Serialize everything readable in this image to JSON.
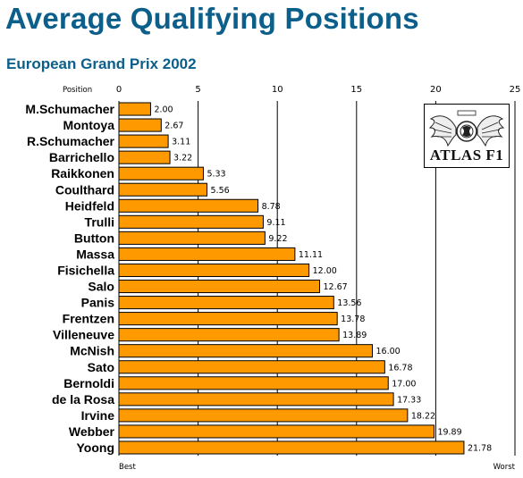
{
  "title": "Average Qualifying Positions",
  "subtitle": "European Grand Prix 2002",
  "logo_text": "ATLAS F1",
  "colors": {
    "title": "#0b5f8a",
    "bar": "#ff9900",
    "bar_stroke": "#000000",
    "grid": "#000000"
  },
  "chart_data": {
    "type": "bar",
    "orientation": "horizontal",
    "title": "Average Qualifying Positions",
    "subtitle": "European Grand Prix 2002",
    "axis_label": "Position",
    "axis_start_label": "Best",
    "axis_end_label": "Worst",
    "xlim": [
      0,
      25
    ],
    "ticks": [
      0,
      5,
      10,
      15,
      20,
      25
    ],
    "grid": true,
    "categories": [
      "M.Schumacher",
      "Montoya",
      "R.Schumacher",
      "Barrichello",
      "Raikkonen",
      "Coulthard",
      "Heidfeld",
      "Trulli",
      "Button",
      "Massa",
      "Fisichella",
      "Salo",
      "Panis",
      "Frentzen",
      "Villeneuve",
      "McNish",
      "Sato",
      "Bernoldi",
      "de la Rosa",
      "Irvine",
      "Webber",
      "Yoong"
    ],
    "values": [
      2.0,
      2.67,
      3.11,
      3.22,
      5.33,
      5.56,
      8.78,
      9.11,
      9.22,
      11.11,
      12.0,
      12.67,
      13.56,
      13.78,
      13.89,
      16.0,
      16.78,
      17.0,
      17.33,
      18.22,
      19.89,
      21.78
    ],
    "value_labels": [
      "2.00",
      "2.67",
      "3.11",
      "3.22",
      "5.33",
      "5.56",
      "8.78",
      "9.11",
      "9.22",
      "11.11",
      "12.00",
      "12.67",
      "13.56",
      "13.78",
      "13.89",
      "16.00",
      "16.78",
      "17.00",
      "17.33",
      "18.22",
      "19.89",
      "21.78"
    ]
  }
}
